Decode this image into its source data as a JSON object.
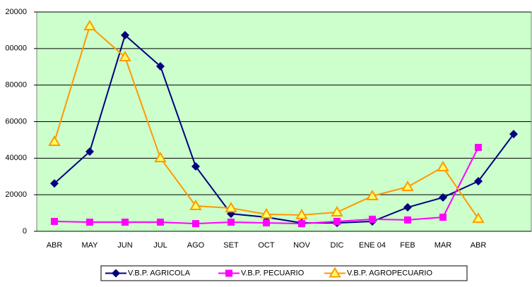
{
  "chart_data": {
    "type": "line",
    "categories": [
      "ABR",
      "MAY",
      "JUN",
      "JUL",
      "AGO",
      "SET",
      "OCT",
      "NOV",
      "DIC",
      "ENE 04",
      "FEB",
      "MAR",
      "ABR",
      null
    ],
    "series": [
      {
        "name": "V.B.P. AGRICOLA",
        "color": "#000080",
        "marker": "diamond",
        "values": [
          26200,
          43600,
          107300,
          90300,
          35500,
          9600,
          7700,
          4600,
          4600,
          5400,
          13100,
          18500,
          27400,
          53200
        ]
      },
      {
        "name": "V.B.P. PECUARIO",
        "color": "#ff00ff",
        "marker": "square",
        "values": [
          5400,
          5000,
          5000,
          5000,
          4200,
          5000,
          4600,
          4200,
          5400,
          6600,
          6200,
          7700,
          45900,
          null
        ]
      },
      {
        "name": "V.B.P. AGROPECUARIO",
        "color": "#ff9900",
        "marker": "triangle",
        "values": [
          49000,
          112300,
          95300,
          40100,
          13900,
          12700,
          9300,
          8900,
          10400,
          19300,
          24300,
          35100,
          6900,
          null
        ]
      }
    ],
    "ylim": [
      0,
      120000
    ],
    "yticks": [
      0,
      20000,
      40000,
      60000,
      80000,
      {
        "value": 100000,
        "label": "00000"
      },
      {
        "value": 120000,
        "label": "20000"
      }
    ],
    "grid": true,
    "plot_background": "#ccffcc",
    "legend": "bottom"
  }
}
